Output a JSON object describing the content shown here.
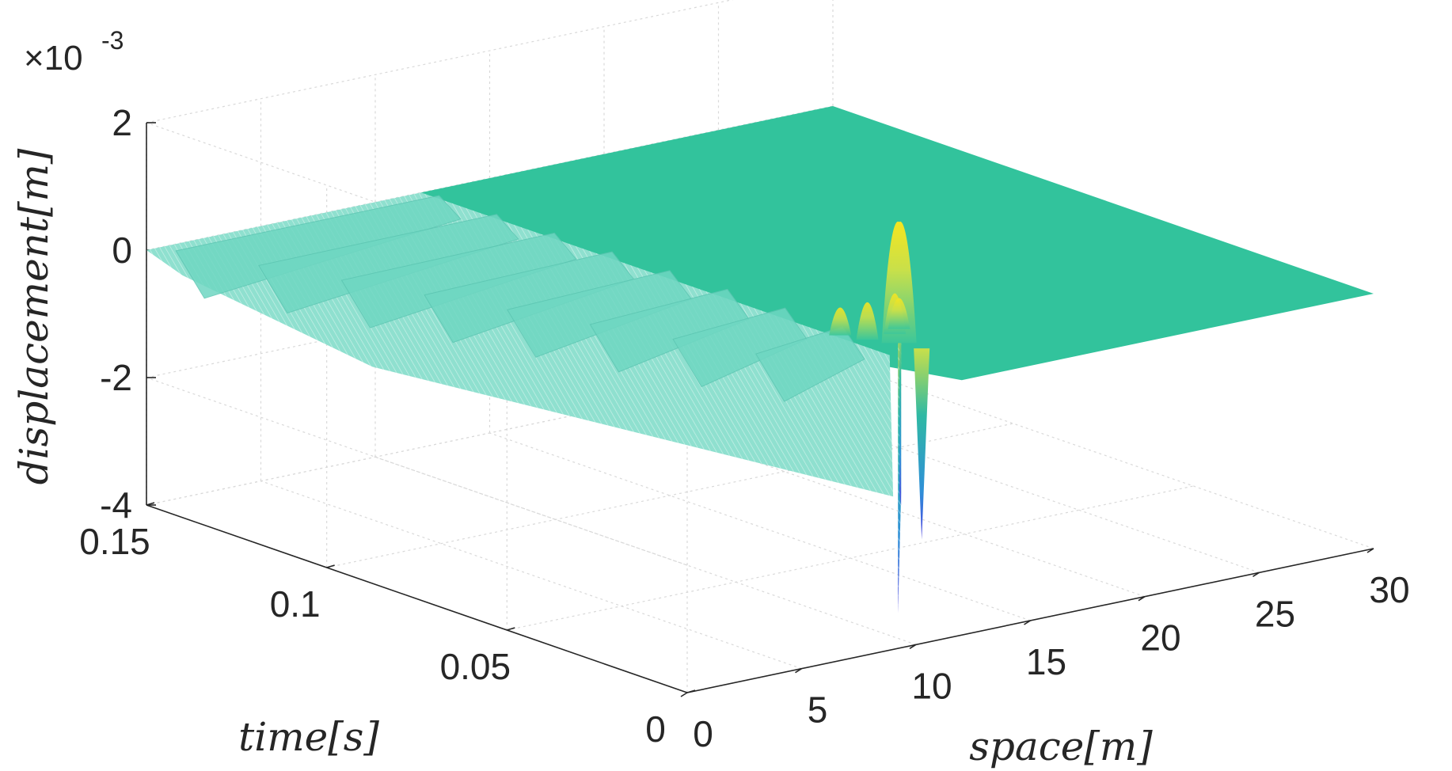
{
  "chart_data": {
    "type": "surface3d",
    "title": "",
    "exponent_label": "×10",
    "exponent_power": "-3",
    "x_axis": {
      "label": "space[m]",
      "range": [
        0,
        30
      ],
      "ticks": [
        "0",
        "5",
        "10",
        "15",
        "20",
        "25",
        "30"
      ]
    },
    "y_axis": {
      "label": "time[s]",
      "range": [
        0,
        0.15
      ],
      "ticks": [
        "0",
        "0.05",
        "0.1",
        "0.15"
      ]
    },
    "z_axis": {
      "label": "displacement[m]",
      "range": [
        -4,
        2
      ],
      "ticks": [
        "-4",
        "-2",
        "0",
        "2"
      ],
      "scale_note": "values ×10^-3"
    },
    "grid": true,
    "colormap": "parula",
    "surface_description_points": [
      {
        "space": 10,
        "time": 0.0,
        "displacement": -2.6
      },
      {
        "space": 13,
        "time": 0.02,
        "displacement": 1.9
      },
      {
        "space": 12,
        "time": 0.02,
        "displacement": -2.3
      },
      {
        "space": 2,
        "time": 0.12,
        "displacement": -0.6
      },
      {
        "space": 30,
        "time": 0.15,
        "displacement": 0.0
      },
      {
        "space": 25,
        "time": 0.0,
        "displacement": 0.0
      }
    ]
  }
}
